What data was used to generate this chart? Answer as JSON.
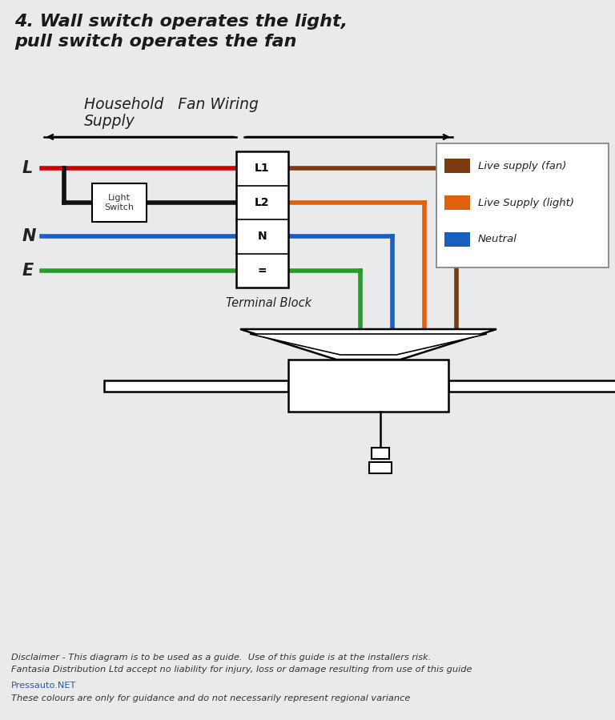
{
  "title_line1": "4. Wall switch operates the light,",
  "title_line2": "pull switch operates the fan",
  "bg_color": "#e8eaec",
  "title_color": "#1a1a1a",
  "wire_red_color": "#cc0000",
  "wire_black_color": "#111111",
  "wire_blue_color": "#1a5fbf",
  "wire_green_color": "#2a9a2a",
  "wire_brown_color": "#7b3a10",
  "wire_orange_color": "#e06010",
  "terminal_labels": [
    "L1",
    "L2",
    "N",
    "="
  ],
  "legend_items": [
    {
      "color": "#7b3a10",
      "label": "Live supply (fan)"
    },
    {
      "color": "#e06010",
      "label": "Live Supply (light)"
    },
    {
      "color": "#1a5fbf",
      "label": "Neutral"
    }
  ],
  "terminal_block_label": "Terminal Block",
  "disclaimer_line1": "Disclaimer - This diagram is to be used as a guide.  Use of this guide is at the installers risk.",
  "disclaimer_line2": "Fantasia Distribution Ltd accept no liability for injury, loss or damage resulting from use of this guide",
  "pressauto_text": "Pressauto.NET",
  "colours_text": "These colours are only for guidance and do not necessarily represent regional variance",
  "light_switch_label": "Light\nSwitch"
}
